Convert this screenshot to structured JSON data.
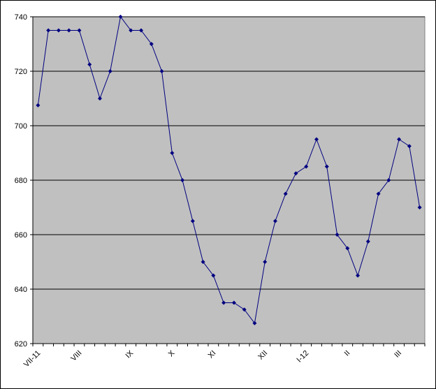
{
  "chart_data": {
    "type": "line",
    "categories": [
      "VII-11",
      null,
      null,
      null,
      "VIII",
      null,
      null,
      null,
      null,
      "IX",
      null,
      null,
      null,
      "X",
      null,
      null,
      null,
      "XI",
      null,
      null,
      null,
      null,
      "XII",
      null,
      null,
      null,
      "I-12",
      null,
      null,
      null,
      "II",
      null,
      null,
      null,
      null,
      "III",
      null,
      null
    ],
    "series": [
      {
        "color": "#000080",
        "values": [
          707.5,
          735,
          735,
          735,
          735,
          722.5,
          710,
          720,
          740,
          735,
          735,
          730,
          720,
          690,
          680,
          665,
          650,
          645,
          635,
          635,
          632.5,
          627.5,
          650,
          665,
          675,
          682.5,
          685,
          695,
          685,
          660,
          655,
          645,
          657.5,
          675,
          680,
          695,
          692.5,
          670
        ]
      }
    ],
    "ylim": [
      620,
      740
    ],
    "yticks": [
      620,
      640,
      660,
      680,
      700,
      720,
      740
    ],
    "grid": true,
    "plot_background": "#c0c0c0"
  }
}
